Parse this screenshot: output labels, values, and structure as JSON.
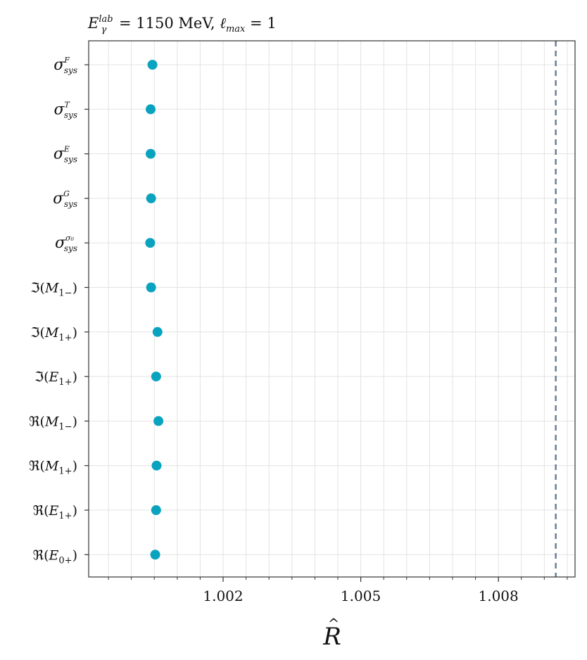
{
  "chart_data": {
    "type": "scatter",
    "title": "E_γ^lab = 1150 MeV, ℓ_max = 1",
    "xlabel": "R̂",
    "ylabel": "",
    "xlim": [
      0.99907,
      1.00967
    ],
    "x_ticks": [
      1.002,
      1.005,
      1.008
    ],
    "x_tick_labels": [
      "1.002",
      "1.005",
      "1.008"
    ],
    "x_minor_step": 0.0005,
    "categories": [
      "σ_sys^F",
      "σ_sys^T",
      "σ_sys^E",
      "σ_sys^G",
      "σ_sys^σ0",
      "ℑ(M1−)",
      "ℑ(M1+)",
      "ℑ(E1+)",
      "ℜ(M1−)",
      "ℜ(M1+)",
      "ℜ(E1+)",
      "ℜ(E0+)"
    ],
    "series": [
      {
        "values": [
          1.00046,
          1.00042,
          1.00042,
          1.00043,
          1.00041,
          1.00043,
          1.00057,
          1.00054,
          1.00059,
          1.00055,
          1.00054,
          1.00052
        ]
      }
    ],
    "reference_line": {
      "x": 1.00925,
      "style": "dashed"
    },
    "grid": true,
    "colors": {
      "points": "#0aa3bf",
      "reference_line": "#6a7f99",
      "grid": "#e3e3e3",
      "axes": "#333333"
    }
  }
}
